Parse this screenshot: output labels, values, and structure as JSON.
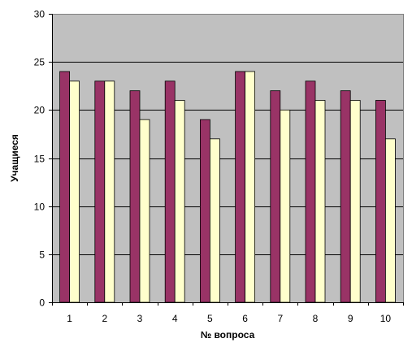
{
  "chart_data": {
    "type": "bar",
    "title": "",
    "xlabel": "№ вопроса",
    "ylabel": "Учащиеся",
    "categories": [
      "1",
      "2",
      "3",
      "4",
      "5",
      "6",
      "7",
      "8",
      "9",
      "10"
    ],
    "series": [
      {
        "color": "#993366",
        "values": [
          24,
          23,
          22,
          23,
          19,
          24,
          22,
          23,
          22,
          21
        ]
      },
      {
        "color": "#FFFFCC",
        "values": [
          23,
          23,
          19,
          21,
          17,
          24,
          20,
          21,
          21,
          17
        ]
      }
    ],
    "ylim": [
      0,
      30
    ],
    "yticks": [
      "0",
      "5",
      "10",
      "15",
      "20",
      "25",
      "30"
    ],
    "grid": true,
    "plot_background": "#C0C0C0"
  }
}
